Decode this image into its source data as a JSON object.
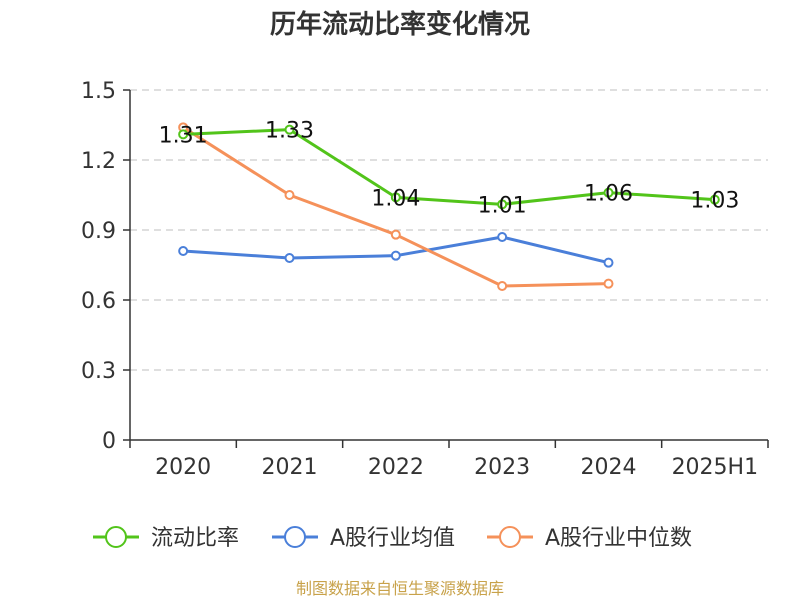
{
  "chart_data": {
    "type": "line",
    "title": "历年流动比率变化情况",
    "categories": [
      "2020",
      "2021",
      "2022",
      "2023",
      "2024",
      "2025H1"
    ],
    "ylim": [
      0,
      1.5
    ],
    "yticks": [
      "0",
      "0.3",
      "0.6",
      "0.9",
      "1.2",
      "1.5"
    ],
    "grid": true,
    "legend_position": "bottom",
    "series": [
      {
        "name": "流动比率",
        "color": "#52c41a",
        "values": [
          1.31,
          1.33,
          1.04,
          1.01,
          1.06,
          1.03
        ],
        "labels": [
          "1.31",
          "1.33",
          "1.04",
          "1.01",
          "1.06",
          "1.03"
        ]
      },
      {
        "name": "A股行业均值",
        "color": "#4a7fd9",
        "values": [
          0.81,
          0.78,
          0.79,
          0.87,
          0.76,
          null
        ]
      },
      {
        "name": "A股行业中位数",
        "color": "#f5915a",
        "values": [
          1.34,
          1.05,
          0.88,
          0.66,
          0.67,
          null
        ]
      }
    ],
    "source": "制图数据来自恒生聚源数据库"
  }
}
